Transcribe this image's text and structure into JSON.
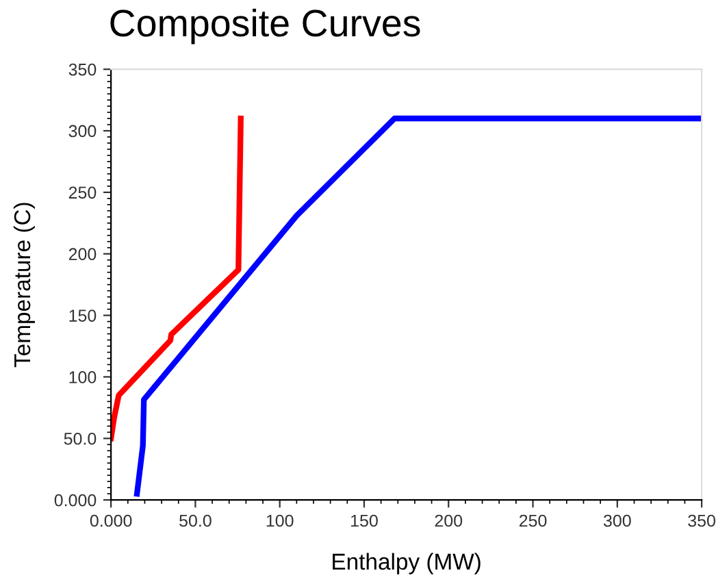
{
  "chart_data": {
    "type": "line",
    "title": "Composite Curves",
    "xlabel": "Enthalpy (MW)",
    "ylabel": "Temperature (C)",
    "xlim": [
      0,
      350
    ],
    "ylim": [
      0,
      350
    ],
    "xticks": [
      {
        "value": 0,
        "label": "0.000"
      },
      {
        "value": 50,
        "label": "50.0"
      },
      100,
      150,
      200,
      250,
      300,
      350
    ],
    "yticks": [
      {
        "value": 0,
        "label": "0.000"
      },
      {
        "value": 50,
        "label": "50.0"
      },
      100,
      150,
      200,
      250,
      300,
      350
    ],
    "grid": false,
    "legend": false,
    "marker": "none",
    "line_style": "solid",
    "series": [
      {
        "color": "#ff0000",
        "x": [
          0,
          1.9,
          4.6,
          35.2,
          35.7,
          75.5,
          76.9
        ],
        "values": [
          50,
          67,
          85,
          129.6,
          134.4,
          187,
          310
        ]
      },
      {
        "color": "#0000ff",
        "x": [
          15.4,
          18.9,
          19.5,
          26.2,
          110,
          168,
          350
        ],
        "values": [
          5,
          44,
          81.5,
          92.6,
          231,
          310,
          310
        ]
      }
    ]
  }
}
